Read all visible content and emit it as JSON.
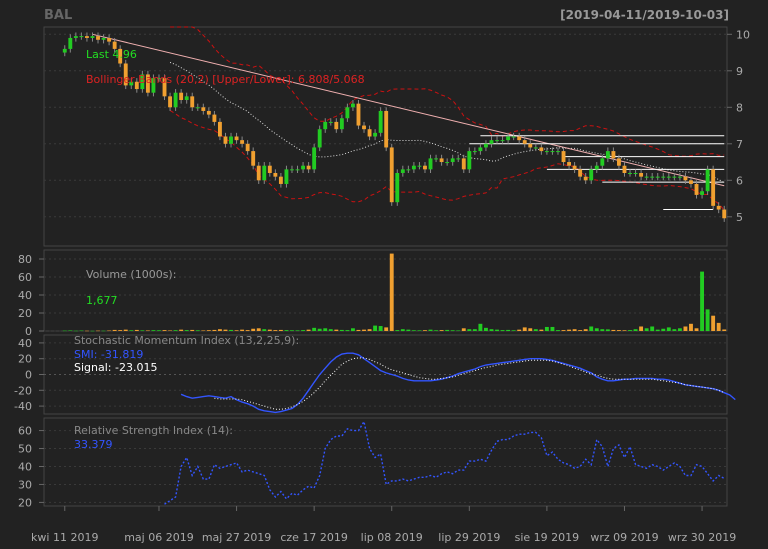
{
  "header": {
    "symbol": "BAL",
    "date_range": "[2019-04-11/2019-10-03]"
  },
  "colors": {
    "up": "#22cc22",
    "down": "#f0a030",
    "bollinger": "#cc1111",
    "trend": "#f0b0b0",
    "smi": "#3355ff",
    "signal": "#ffffff",
    "rsi": "#3355ff",
    "grid": "#444444"
  },
  "chart_data": [
    {
      "type": "candlestick",
      "panel": "price",
      "annotations": {
        "last": "Last 4.96",
        "bollinger": "Bollinger Bands (20,2) [Upper/Lower]: 6.808/5.068"
      },
      "ylim": [
        4.2,
        10.2
      ],
      "yticks": [
        5,
        6,
        7,
        8,
        9,
        10
      ],
      "x_labels": [
        "kwi 11 2019",
        "maj 06 2019",
        "maj 27 2019",
        "cze 17 2019",
        "lip 08 2019",
        "lip 29 2019",
        "sie 19 2019",
        "wrz 09 2019",
        "wrz 30 2019"
      ],
      "x_label_index": [
        0,
        17,
        31,
        45,
        59,
        73,
        87,
        101,
        115
      ],
      "num_sessions": 120,
      "close": [
        9.6,
        9.9,
        9.95,
        9.95,
        9.9,
        9.95,
        9.85,
        9.9,
        9.8,
        9.6,
        9.2,
        8.6,
        8.7,
        8.5,
        8.9,
        8.4,
        8.8,
        8.8,
        8.3,
        8.0,
        8.4,
        8.2,
        8.3,
        8.0,
        8.0,
        7.9,
        7.8,
        7.6,
        7.2,
        7.0,
        7.2,
        7.1,
        7.0,
        6.8,
        6.4,
        6.0,
        6.4,
        6.2,
        6.1,
        5.9,
        6.3,
        6.3,
        6.3,
        6.4,
        6.3,
        6.9,
        7.4,
        7.6,
        7.6,
        7.4,
        7.7,
        8.0,
        8.1,
        7.5,
        7.4,
        7.2,
        7.3,
        7.9,
        6.9,
        5.4,
        6.2,
        6.3,
        6.3,
        6.4,
        6.4,
        6.3,
        6.6,
        6.6,
        6.5,
        6.5,
        6.6,
        6.6,
        6.3,
        6.8,
        6.8,
        6.9,
        7.0,
        7.1,
        7.1,
        7.1,
        7.2,
        7.2,
        7.1,
        7.0,
        6.9,
        6.9,
        6.8,
        6.8,
        6.8,
        6.8,
        6.5,
        6.4,
        6.3,
        6.1,
        6.0,
        6.3,
        6.4,
        6.6,
        6.8,
        6.6,
        6.4,
        6.2,
        6.2,
        6.2,
        6.1,
        6.1,
        6.1,
        6.1,
        6.1,
        6.1,
        6.1,
        6.1,
        6.0,
        5.9,
        5.6,
        5.7,
        6.3,
        5.3,
        5.2,
        4.96
      ],
      "volume": [
        0.4,
        0.6,
        0.3,
        0.5,
        0.3,
        0.2,
        0.4,
        0.3,
        0.5,
        1.2,
        1.0,
        1.5,
        0.8,
        1.2,
        0.7,
        0.6,
        0.9,
        0.8,
        1.0,
        0.6,
        0.9,
        1.5,
        1.0,
        1.2,
        0.8,
        0.6,
        0.9,
        1.2,
        2.0,
        1.5,
        1.2,
        0.8,
        1.5,
        1.0,
        2.5,
        3.0,
        2.0,
        1.5,
        1.0,
        1.2,
        1.0,
        0.8,
        0.7,
        1.0,
        1.5,
        3.5,
        2.5,
        3.0,
        2.0,
        1.5,
        1.2,
        1.0,
        3.0,
        1.2,
        1.5,
        2.0,
        6.0,
        5.5,
        4.0,
        86,
        1.0,
        2.0,
        1.5,
        0.8,
        0.7,
        0.9,
        1.5,
        0.8,
        1.0,
        1.2,
        0.8,
        0.6,
        3.0,
        2.0,
        2.0,
        8.0,
        3.5,
        2.0,
        1.5,
        1.0,
        1.2,
        0.8,
        1.5,
        4.0,
        3.0,
        2.0,
        1.5,
        4.5,
        4.5,
        1.0,
        1.0,
        1.5,
        2.0,
        1.0,
        2.0,
        5.0,
        3.0,
        2.0,
        1.8,
        1.2,
        1.0,
        0.8,
        1.0,
        2.0,
        5.0,
        3.0,
        5.0,
        1.5,
        2.5,
        4.0,
        2.0,
        3.0,
        5.0,
        8.0,
        3.0,
        66,
        24,
        17,
        9,
        1.677
      ],
      "volume_ylim": [
        0,
        90
      ],
      "volume_yticks": [
        0,
        20,
        40,
        60,
        80
      ],
      "volume_label": "Volume (1000s):",
      "volume_last": "1,677",
      "smi": [
        null,
        null,
        null,
        null,
        null,
        null,
        null,
        null,
        null,
        null,
        null,
        null,
        null,
        null,
        null,
        null,
        null,
        null,
        null,
        null,
        null,
        -25,
        -28,
        -30,
        -29,
        -28,
        -27,
        -28,
        -29,
        -30,
        -28,
        -32,
        -35,
        -37,
        -40,
        -44,
        -46,
        -47,
        -48,
        -47,
        -45,
        -43,
        -38,
        -30,
        -20,
        -10,
        0,
        8,
        16,
        22,
        26,
        27,
        27,
        25,
        20,
        15,
        10,
        5,
        2,
        0,
        -2,
        -5,
        -7,
        -8,
        -8,
        -8,
        -8,
        -7,
        -6,
        -4,
        -2,
        1,
        3,
        5,
        7,
        10,
        12,
        13,
        14,
        15,
        16,
        17,
        18,
        19,
        20,
        20,
        20,
        19,
        18,
        16,
        14,
        12,
        10,
        8,
        5,
        2,
        -3,
        -6,
        -8,
        -8,
        -7,
        -6,
        -6,
        -5,
        -5,
        -5,
        -5,
        -6,
        -6,
        -7,
        -9,
        -11,
        -13,
        -14,
        -15,
        -16,
        -17,
        -18,
        -20,
        -23,
        -26,
        -31.819
      ],
      "signal": [
        null,
        null,
        null,
        null,
        null,
        null,
        null,
        null,
        null,
        null,
        null,
        null,
        null,
        null,
        null,
        null,
        null,
        null,
        null,
        null,
        null,
        null,
        null,
        null,
        null,
        null,
        null,
        -30,
        -31,
        -31,
        -31,
        -31,
        -32,
        -34,
        -36,
        -38,
        -40,
        -42,
        -44,
        -44,
        -43,
        -41,
        -38,
        -34,
        -29,
        -23,
        -16,
        -8,
        -1,
        6,
        13,
        17,
        20,
        21,
        21,
        19,
        16,
        13,
        9,
        6,
        4,
        2,
        0,
        -2,
        -4,
        -5,
        -6,
        -6,
        -5,
        -4,
        -3,
        -1,
        1,
        3,
        5,
        7,
        9,
        10,
        12,
        13,
        14,
        15,
        16,
        17,
        18,
        18,
        18,
        18,
        17,
        15,
        13,
        11,
        8,
        6,
        3,
        1,
        -1,
        -3,
        -5,
        -6,
        -6,
        -6,
        -6,
        -6,
        -6,
        -6,
        -6,
        -7,
        -8,
        -9,
        -10,
        -11,
        -13,
        -14,
        -15,
        -16,
        -17,
        -18,
        -20,
        -23.015
      ],
      "smi_ylim": [
        -50,
        50
      ],
      "smi_yticks": [
        -40,
        -20,
        0,
        20,
        40
      ],
      "smi_title": "Stochastic Momentum Index (13,2,25,9):",
      "smi_value": "SMI: -31.819",
      "signal_value": "Signal: -23.015",
      "rsi": [
        null,
        null,
        null,
        null,
        null,
        null,
        null,
        null,
        null,
        null,
        null,
        null,
        null,
        null,
        null,
        null,
        null,
        null,
        19,
        21,
        23,
        40,
        45,
        35,
        40,
        33,
        33,
        41,
        39,
        40,
        41,
        42,
        37,
        38,
        37,
        36,
        35,
        27,
        23,
        26,
        22,
        25,
        24,
        27,
        29,
        28,
        35,
        50,
        55,
        57,
        57,
        61,
        60,
        60,
        65,
        50,
        45,
        47,
        30,
        32,
        32,
        33,
        32,
        33,
        34,
        34,
        35,
        34,
        36,
        37,
        36,
        38,
        38,
        43,
        43,
        44,
        43,
        49,
        54,
        55,
        55,
        57,
        58,
        58,
        59,
        59,
        56,
        46,
        48,
        44,
        42,
        41,
        39,
        40,
        44,
        41,
        55,
        51,
        40,
        50,
        52,
        45,
        51,
        41,
        40,
        39,
        41,
        40,
        38,
        40,
        42,
        40,
        35,
        35,
        41,
        40,
        36,
        32,
        35,
        33.379
      ],
      "rsi_ylim": [
        18,
        67
      ],
      "rsi_yticks": [
        20,
        30,
        40,
        50,
        60
      ],
      "rsi_title": "Relative Strength Index (14):",
      "rsi_value": "33.379"
    }
  ]
}
